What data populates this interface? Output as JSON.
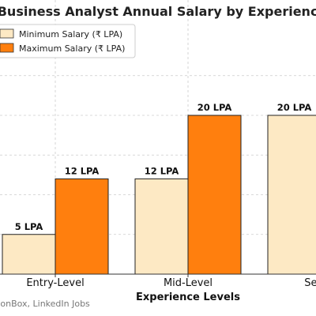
{
  "chart_data": {
    "type": "bar",
    "title": "Business Analyst Annual Salary by Experience",
    "xlabel": "Experience Levels",
    "ylabel": "",
    "categories": [
      "Entry-Level",
      "Mid-Level",
      "Senior"
    ],
    "series": [
      {
        "name": "Minimum Salary (₹ LPA)",
        "color": "#fde9c4",
        "values": [
          5,
          12,
          20
        ],
        "labels": [
          "5 LPA",
          "12 LPA",
          "20 LPA"
        ]
      },
      {
        "name": "Maximum Salary (₹ LPA)",
        "color": "#ff7f0e",
        "values": [
          12,
          20,
          null
        ],
        "labels": [
          "12 LPA",
          "20 LPA",
          ""
        ]
      }
    ],
    "ylim": [
      0,
      28
    ],
    "grid": true,
    "legend_position": "top-left",
    "source": "Sources: AmbitionBox, LinkedIn Jobs"
  }
}
